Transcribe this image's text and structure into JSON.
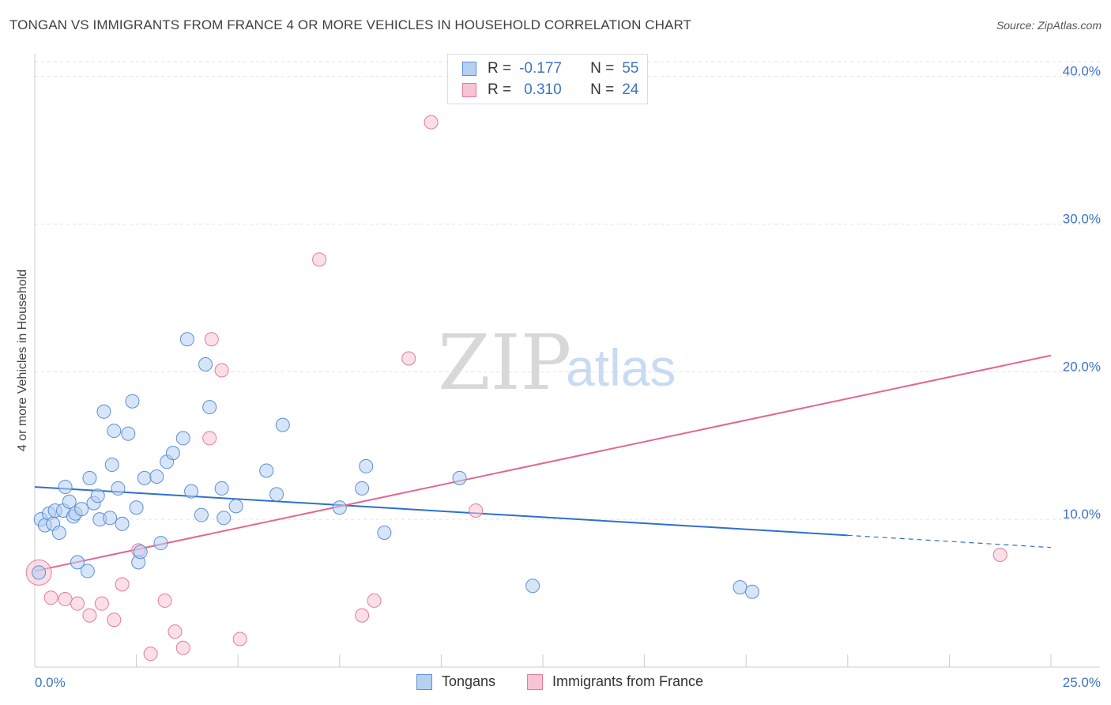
{
  "header": {
    "title": "TONGAN VS IMMIGRANTS FROM FRANCE 4 OR MORE VEHICLES IN HOUSEHOLD CORRELATION CHART",
    "source": "Source: ZipAtlas.com"
  },
  "watermark": {
    "zip": "ZIP",
    "atlas": "atlas"
  },
  "legend": {
    "rows": [
      {
        "r_label": "R =",
        "r_value": "-0.177",
        "n_label": "N =",
        "n_value": "55"
      },
      {
        "r_label": "R =",
        "r_value": "0.310",
        "n_label": "N =",
        "n_value": "24"
      }
    ]
  },
  "colors": {
    "blue_fill": "#b6d0f2",
    "blue_stroke": "#5b8fd6",
    "blue_line": "#2e6fcf",
    "pink_fill": "#f7c4d3",
    "pink_stroke": "#e57b9c",
    "pink_line": "#e0688f",
    "tick_text": "#3d74c5"
  },
  "chart_data": {
    "type": "scatter",
    "title": "TONGAN VS IMMIGRANTS FROM FRANCE 4 OR MORE VEHICLES IN HOUSEHOLD CORRELATION CHART",
    "xlabel": "",
    "ylabel": "4 or more Vehicles in Household",
    "xlim": [
      0,
      25
    ],
    "ylim": [
      0,
      41
    ],
    "x_tick_labels": [
      "0.0%",
      "25.0%"
    ],
    "y_ticks": [
      10,
      20,
      30,
      40
    ],
    "y_tick_labels": [
      "10.0%",
      "20.0%",
      "30.0%",
      "40.0%"
    ],
    "grid": true,
    "legend_position": "top-center",
    "series": [
      {
        "name": "Tongans",
        "r": -0.177,
        "n": 55,
        "trend": {
          "x0": 0,
          "y0": 12.2,
          "x1": 25,
          "y1": 8.1,
          "solid_until_x": 20
        },
        "points": [
          {
            "x": 0.1,
            "y": 6.4,
            "s": 1
          },
          {
            "x": 0.15,
            "y": 10.0,
            "s": 1
          },
          {
            "x": 0.25,
            "y": 9.6,
            "s": 1
          },
          {
            "x": 0.35,
            "y": 10.4,
            "s": 1
          },
          {
            "x": 0.45,
            "y": 9.7,
            "s": 1
          },
          {
            "x": 0.5,
            "y": 10.6,
            "s": 1
          },
          {
            "x": 0.6,
            "y": 9.1,
            "s": 1
          },
          {
            "x": 0.7,
            "y": 10.6,
            "s": 1
          },
          {
            "x": 0.75,
            "y": 12.2,
            "s": 1
          },
          {
            "x": 0.85,
            "y": 11.2,
            "s": 1
          },
          {
            "x": 0.95,
            "y": 10.2,
            "s": 1
          },
          {
            "x": 1.0,
            "y": 10.4,
            "s": 1
          },
          {
            "x": 1.05,
            "y": 7.1,
            "s": 1
          },
          {
            "x": 1.15,
            "y": 10.7,
            "s": 1
          },
          {
            "x": 1.3,
            "y": 6.5,
            "s": 1
          },
          {
            "x": 1.35,
            "y": 12.8,
            "s": 1
          },
          {
            "x": 1.45,
            "y": 11.1,
            "s": 1
          },
          {
            "x": 1.55,
            "y": 11.6,
            "s": 1
          },
          {
            "x": 1.6,
            "y": 10.0,
            "s": 1
          },
          {
            "x": 1.7,
            "y": 17.3,
            "s": 1
          },
          {
            "x": 1.85,
            "y": 10.1,
            "s": 1
          },
          {
            "x": 1.9,
            "y": 13.7,
            "s": 1
          },
          {
            "x": 1.95,
            "y": 16.0,
            "s": 1
          },
          {
            "x": 2.05,
            "y": 12.1,
            "s": 1
          },
          {
            "x": 2.15,
            "y": 9.7,
            "s": 1
          },
          {
            "x": 2.3,
            "y": 15.8,
            "s": 1
          },
          {
            "x": 2.4,
            "y": 18.0,
            "s": 1
          },
          {
            "x": 2.5,
            "y": 10.8,
            "s": 1
          },
          {
            "x": 2.55,
            "y": 7.1,
            "s": 1
          },
          {
            "x": 2.6,
            "y": 7.8,
            "s": 1
          },
          {
            "x": 2.7,
            "y": 12.8,
            "s": 1
          },
          {
            "x": 3.0,
            "y": 12.9,
            "s": 1
          },
          {
            "x": 3.1,
            "y": 8.4,
            "s": 1
          },
          {
            "x": 3.25,
            "y": 13.9,
            "s": 1
          },
          {
            "x": 3.4,
            "y": 14.5,
            "s": 1
          },
          {
            "x": 3.65,
            "y": 15.5,
            "s": 1
          },
          {
            "x": 3.75,
            "y": 22.2,
            "s": 1
          },
          {
            "x": 3.85,
            "y": 11.9,
            "s": 1
          },
          {
            "x": 4.1,
            "y": 10.3,
            "s": 1
          },
          {
            "x": 4.2,
            "y": 20.5,
            "s": 1
          },
          {
            "x": 4.3,
            "y": 17.6,
            "s": 1
          },
          {
            "x": 4.6,
            "y": 12.1,
            "s": 1
          },
          {
            "x": 4.65,
            "y": 10.1,
            "s": 1
          },
          {
            "x": 4.95,
            "y": 10.9,
            "s": 1
          },
          {
            "x": 5.7,
            "y": 13.3,
            "s": 1
          },
          {
            "x": 5.95,
            "y": 11.7,
            "s": 1
          },
          {
            "x": 6.1,
            "y": 16.4,
            "s": 1
          },
          {
            "x": 7.5,
            "y": 10.8,
            "s": 1
          },
          {
            "x": 8.05,
            "y": 12.1,
            "s": 1
          },
          {
            "x": 8.15,
            "y": 13.6,
            "s": 1
          },
          {
            "x": 8.6,
            "y": 9.1,
            "s": 1
          },
          {
            "x": 10.45,
            "y": 12.8,
            "s": 1
          },
          {
            "x": 12.25,
            "y": 5.5,
            "s": 1
          },
          {
            "x": 17.35,
            "y": 5.4,
            "s": 1
          },
          {
            "x": 17.65,
            "y": 5.1,
            "s": 1
          }
        ]
      },
      {
        "name": "Immigrants from France",
        "r": 0.31,
        "n": 24,
        "trend": {
          "x0": 0,
          "y0": 6.5,
          "x1": 25,
          "y1": 21.1
        },
        "points": [
          {
            "x": 0.1,
            "y": 6.4,
            "s": 2
          },
          {
            "x": 0.4,
            "y": 4.7,
            "s": 1
          },
          {
            "x": 0.75,
            "y": 4.6,
            "s": 1
          },
          {
            "x": 1.05,
            "y": 4.3,
            "s": 1
          },
          {
            "x": 1.35,
            "y": 3.5,
            "s": 1
          },
          {
            "x": 1.65,
            "y": 4.3,
            "s": 1
          },
          {
            "x": 1.95,
            "y": 3.2,
            "s": 1
          },
          {
            "x": 2.15,
            "y": 5.6,
            "s": 1
          },
          {
            "x": 2.55,
            "y": 7.9,
            "s": 1
          },
          {
            "x": 2.85,
            "y": 0.9,
            "s": 1
          },
          {
            "x": 3.2,
            "y": 4.5,
            "s": 1
          },
          {
            "x": 3.45,
            "y": 2.4,
            "s": 1
          },
          {
            "x": 3.65,
            "y": 1.3,
            "s": 1
          },
          {
            "x": 4.3,
            "y": 15.5,
            "s": 1
          },
          {
            "x": 4.35,
            "y": 22.2,
            "s": 1
          },
          {
            "x": 4.6,
            "y": 20.1,
            "s": 1
          },
          {
            "x": 5.05,
            "y": 1.9,
            "s": 1
          },
          {
            "x": 7.0,
            "y": 27.6,
            "s": 1
          },
          {
            "x": 8.05,
            "y": 3.5,
            "s": 1
          },
          {
            "x": 8.35,
            "y": 4.5,
            "s": 1
          },
          {
            "x": 9.2,
            "y": 20.9,
            "s": 1
          },
          {
            "x": 9.75,
            "y": 36.9,
            "s": 1
          },
          {
            "x": 10.85,
            "y": 10.6,
            "s": 1
          },
          {
            "x": 23.75,
            "y": 7.6,
            "s": 1
          }
        ]
      }
    ]
  }
}
